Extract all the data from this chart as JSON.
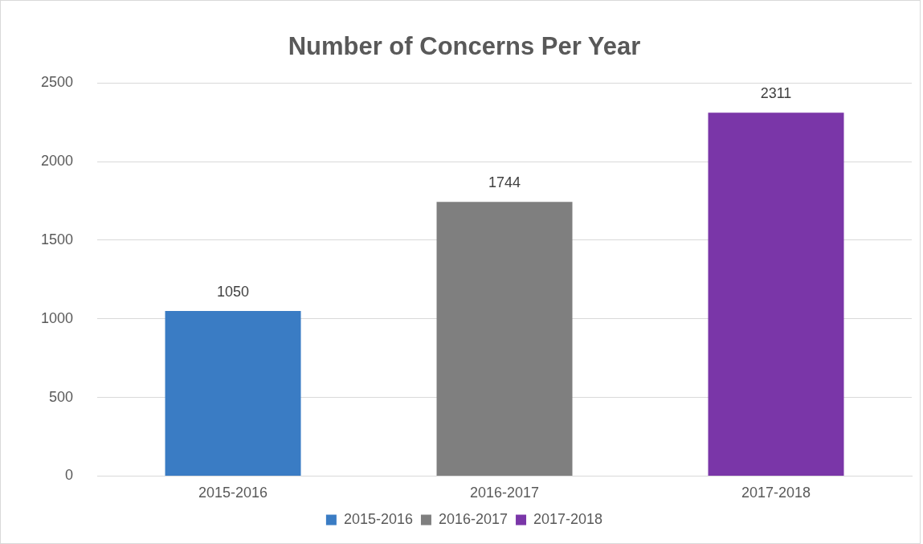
{
  "chart_data": {
    "type": "bar",
    "title": "Number of Concerns Per Year",
    "categories": [
      "2015-2016",
      "2016-2017",
      "2017-2018"
    ],
    "series": [
      {
        "name": "2015-2016",
        "color": "#3a7cc4",
        "values": [
          1050,
          null,
          null
        ]
      },
      {
        "name": "2016-2017",
        "color": "#7f7f7f",
        "values": [
          null,
          1744,
          null
        ]
      },
      {
        "name": "2017-2018",
        "color": "#7a36a8",
        "values": [
          null,
          null,
          2311
        ]
      }
    ],
    "ylim": [
      0,
      2500
    ],
    "yticks": [
      0,
      500,
      1000,
      1500,
      2000,
      2500
    ],
    "grid": "y",
    "data_labels": true,
    "legend": "bottom"
  }
}
